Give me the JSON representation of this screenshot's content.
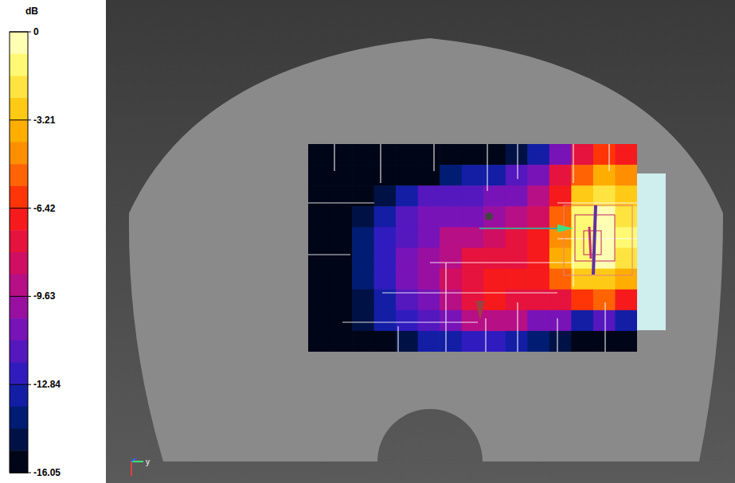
{
  "chart_data": {
    "type": "heatmap",
    "tick_labels": false,
    "colorbar": {
      "label": "dB",
      "range": [
        -16.05,
        0
      ],
      "ticks": [
        0,
        -3.21,
        -6.42,
        -9.63,
        -12.84,
        -16.05
      ]
    },
    "annotations": [
      "y"
    ],
    "cells": [
      [
        -16.05,
        -16.05,
        -16.05,
        -16.05,
        -16.05,
        -16.05,
        -16.05,
        -16.05,
        -16.05,
        -15,
        -13,
        -11,
        -8,
        -6,
        -7
      ],
      [
        -16.05,
        -16.05,
        -16.05,
        -16.05,
        -16.05,
        -15.5,
        -14,
        -13.5,
        -13,
        -12,
        -11,
        -8,
        -5,
        -3.5,
        -4.5
      ],
      [
        -16.05,
        -16.05,
        -16.05,
        -14.5,
        -13,
        -12,
        -11.5,
        -11.5,
        -11,
        -10.5,
        -9.5,
        -6.5,
        -3,
        -1.8,
        -3
      ],
      [
        -16.05,
        -16.05,
        -15,
        -13,
        -12,
        -11,
        -10.5,
        -10.5,
        -10,
        -9.5,
        -8.5,
        -5.5,
        -1.5,
        -0.5,
        -2
      ],
      [
        -16.05,
        -16.05,
        -14,
        -12.5,
        -11.5,
        -10.5,
        -9.5,
        -9,
        -8.5,
        -8,
        -7,
        -4.5,
        -1,
        0,
        -1.5
      ],
      [
        -16.05,
        -16.05,
        -14,
        -12.5,
        -11,
        -10,
        -9,
        -8,
        -7.5,
        -7.5,
        -6.5,
        -4,
        -1.2,
        -0.3,
        -2
      ],
      [
        -16.05,
        -16.05,
        -14,
        -12.5,
        -11,
        -10,
        -8.5,
        -7.5,
        -7,
        -7,
        -6.8,
        -5.5,
        -3,
        -2.5,
        -4
      ],
      [
        -16.05,
        -16.05,
        -14.5,
        -13,
        -11.5,
        -10.5,
        -9,
        -8,
        -7.2,
        -7.5,
        -8,
        -7.5,
        -6,
        -5.5,
        -7
      ],
      [
        -16.05,
        -16.05,
        -15,
        -13.5,
        -12.5,
        -11.5,
        -10.5,
        -9.5,
        -9,
        -9.5,
        -10.5,
        -11,
        -13,
        -12,
        -13
      ],
      [
        -16.05,
        -16.05,
        -16.05,
        -15.5,
        -14.5,
        -13.5,
        -13,
        -12.5,
        -12.5,
        -13,
        -14,
        -15,
        -16.05,
        -16.05,
        -16.05
      ]
    ]
  }
}
